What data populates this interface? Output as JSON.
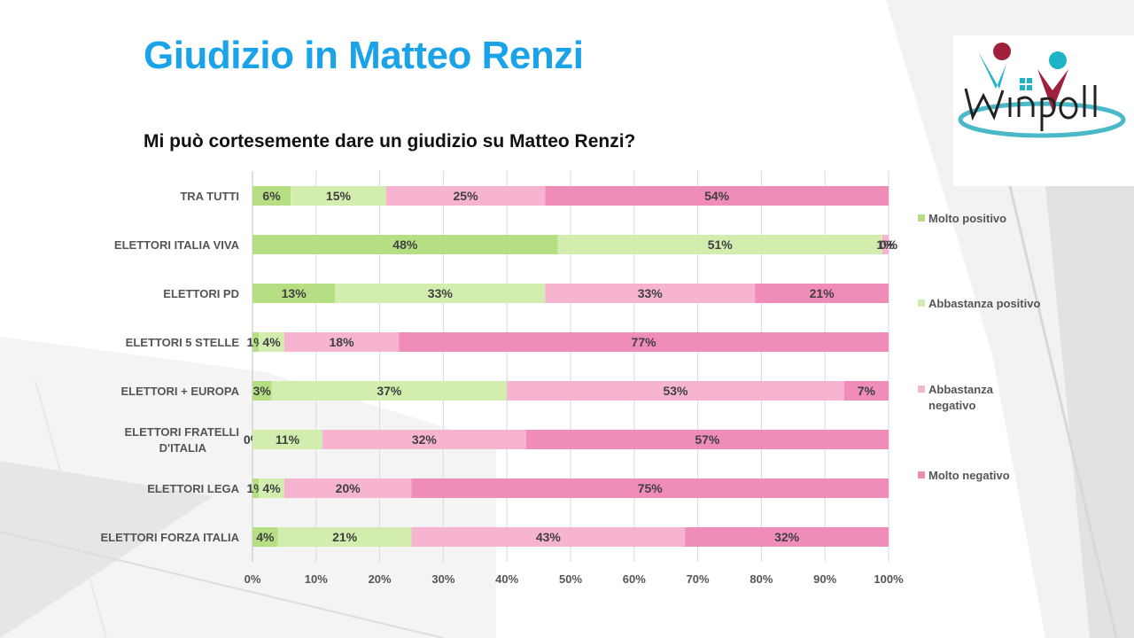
{
  "slide": {
    "title": "Giudizio in Matteo Renzi",
    "subtitle": "Mi può cortesemente dare un giudizio su Matteo Renzi?",
    "logo_text": "winpoll"
  },
  "colors": {
    "title": "#1aa3e8",
    "molto_positivo": "#b5df82",
    "abbastanza_positivo": "#d3edaf",
    "abbastanza_negativo": "#f6b4d0",
    "molto_negativo": "#f08cb8"
  },
  "chart_data": {
    "type": "bar",
    "orientation": "horizontal",
    "stacked": "percent",
    "categories": [
      "TRA TUTTI",
      "ELETTORI ITALIA VIVA",
      "ELETTORI PD",
      "ELETTORI 5 STELLE",
      "ELETTORI + EUROPA",
      "ELETTORI FRATELLI D'ITALIA",
      "ELETTORI LEGA",
      "ELETTORI FORZA ITALIA"
    ],
    "series": [
      {
        "name": "Molto positivo",
        "color": "#b5df82",
        "values": [
          6,
          48,
          13,
          1,
          3,
          0,
          1,
          4
        ]
      },
      {
        "name": "Abbastanza positivo",
        "color": "#d3edaf",
        "values": [
          15,
          51,
          33,
          4,
          37,
          11,
          4,
          21
        ]
      },
      {
        "name": "Abbastanza negativo",
        "color": "#f6b4d0",
        "values": [
          25,
          1,
          33,
          18,
          53,
          32,
          20,
          43
        ]
      },
      {
        "name": "Molto negativo",
        "color": "#f08cb8",
        "values": [
          54,
          0,
          21,
          77,
          7,
          57,
          75,
          32
        ]
      }
    ],
    "xlim": [
      0,
      100
    ],
    "xticks": [
      "0%",
      "10%",
      "20%",
      "30%",
      "40%",
      "50%",
      "60%",
      "70%",
      "80%",
      "90%",
      "100%"
    ],
    "grid": true,
    "legend_position": "right"
  }
}
